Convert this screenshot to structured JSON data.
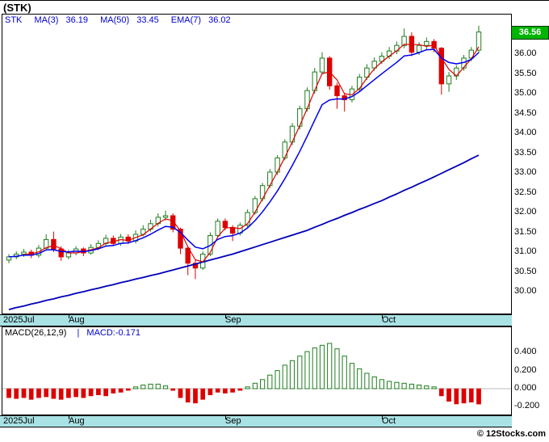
{
  "header": {
    "title": "(STK)"
  },
  "legend": {
    "symbol": "STK",
    "items": [
      {
        "label": "MA(3)",
        "value": "36.19"
      },
      {
        "label": "MA(50)",
        "value": "33.45"
      },
      {
        "label": "EMA(7)",
        "value": "36.02"
      }
    ]
  },
  "price_tag": "36.56",
  "macd": {
    "label": "MACD(26,12,9)",
    "separator": "|",
    "value_label": "MACD:-0.171"
  },
  "footer": {
    "copyright": "© 12Stocks.com"
  },
  "colors": {
    "accent_blue": "#0000CC",
    "up_green": "#1E7D1E",
    "down_red": "#DD0000",
    "ma_fast_blue": "#0000EE",
    "ma_slow_blue": "#0000BB",
    "ma3_red": "#DD0000",
    "band_cyan": "#A9E2E5",
    "tag_green": "#00B400",
    "tag_text": "#FFFFFF"
  },
  "chart_data": [
    {
      "type": "candlestick",
      "title": "(STK)",
      "symbol": "STK",
      "ylim": [
        29.45,
        37.0
      ],
      "y_ticks": [
        "36.00",
        "35.50",
        "35.00",
        "34.50",
        "34.00",
        "33.50",
        "33.00",
        "32.50",
        "32.00",
        "31.50",
        "31.00",
        "30.50",
        "30.00"
      ],
      "x_ticks": [
        {
          "index": 0,
          "label": "2025Jul"
        },
        {
          "index": 8,
          "label": "Aug"
        },
        {
          "index": 29,
          "label": "Sep"
        },
        {
          "index": 50,
          "label": "Oct"
        }
      ],
      "last_price": 36.56,
      "ohlc": {
        "open": [
          30.8,
          30.88,
          30.95,
          31.0,
          30.92,
          31.1,
          31.32,
          31.08,
          30.88,
          30.98,
          31.08,
          30.98,
          31.12,
          31.22,
          31.35,
          31.22,
          31.38,
          31.28,
          31.45,
          31.58,
          31.72,
          31.88,
          31.92,
          31.58,
          31.1,
          30.72,
          30.6,
          30.95,
          31.42,
          31.78,
          31.62,
          31.48,
          31.68,
          32.0,
          32.35,
          32.68,
          33.02,
          33.38,
          33.78,
          34.18,
          34.62,
          35.08,
          35.55,
          35.9,
          35.2,
          34.95,
          34.85,
          35.12,
          35.42,
          35.65,
          35.82,
          35.95,
          36.08,
          36.22,
          36.45,
          36.05,
          36.22,
          36.32,
          36.15,
          35.25,
          35.45,
          35.65,
          35.9,
          36.1
        ],
        "high": [
          30.95,
          31.02,
          31.08,
          31.06,
          31.18,
          31.45,
          31.52,
          31.15,
          31.06,
          31.15,
          31.12,
          31.2,
          31.3,
          31.44,
          31.42,
          31.46,
          31.45,
          31.55,
          31.68,
          31.82,
          31.98,
          32.05,
          31.98,
          31.62,
          31.15,
          30.8,
          31.02,
          31.5,
          31.85,
          31.85,
          31.68,
          31.75,
          32.08,
          32.42,
          32.75,
          33.1,
          33.45,
          33.85,
          34.26,
          34.7,
          35.16,
          35.65,
          36.05,
          35.95,
          35.28,
          35.02,
          35.2,
          35.5,
          35.75,
          35.92,
          36.05,
          36.18,
          36.32,
          36.65,
          36.55,
          36.3,
          36.42,
          36.38,
          36.18,
          35.55,
          35.72,
          35.98,
          36.18,
          36.72
        ],
        "low": [
          30.72,
          30.82,
          30.88,
          30.85,
          30.86,
          31.05,
          31.0,
          30.78,
          30.82,
          30.92,
          30.9,
          30.94,
          31.05,
          31.16,
          31.15,
          31.16,
          31.2,
          31.22,
          31.4,
          31.52,
          31.65,
          31.8,
          31.5,
          30.95,
          30.42,
          30.32,
          30.55,
          30.9,
          31.38,
          31.55,
          31.28,
          31.42,
          31.62,
          31.95,
          32.28,
          32.62,
          32.95,
          33.32,
          33.7,
          34.1,
          34.55,
          35.0,
          35.48,
          35.1,
          34.62,
          34.55,
          34.78,
          35.05,
          35.35,
          35.58,
          35.75,
          35.88,
          36.0,
          36.15,
          35.95,
          35.98,
          36.12,
          36.05,
          34.98,
          35.05,
          35.35,
          35.58,
          35.82,
          36.02
        ],
        "close": [
          30.88,
          30.95,
          31.0,
          30.92,
          31.1,
          31.32,
          31.08,
          30.88,
          30.98,
          31.08,
          30.98,
          31.12,
          31.22,
          31.35,
          31.22,
          31.38,
          31.28,
          31.45,
          31.58,
          31.72,
          31.88,
          31.92,
          31.58,
          31.1,
          30.72,
          30.6,
          30.95,
          31.42,
          31.78,
          31.62,
          31.48,
          31.68,
          32.0,
          32.35,
          32.68,
          33.02,
          33.38,
          33.78,
          34.18,
          34.62,
          35.08,
          35.55,
          35.9,
          35.2,
          34.95,
          34.85,
          35.12,
          35.42,
          35.65,
          35.82,
          35.95,
          36.08,
          36.22,
          36.45,
          36.05,
          36.22,
          36.32,
          36.15,
          35.25,
          35.45,
          35.65,
          35.9,
          36.1,
          36.56
        ]
      },
      "overlays": [
        {
          "name": "MA(3)",
          "type": "sma",
          "period": 3,
          "last_value": 36.19,
          "color": "#DD0000"
        },
        {
          "name": "EMA(7)",
          "type": "ema",
          "period": 7,
          "last_value": 36.02,
          "color": "#0000EE"
        },
        {
          "name": "MA(50)",
          "type": "sma",
          "period": 50,
          "last_value": 33.45,
          "color": "#0000BB",
          "values": [
            29.55,
            29.6,
            29.64,
            29.69,
            29.73,
            29.78,
            29.82,
            29.87,
            29.91,
            29.96,
            30.0,
            30.05,
            30.09,
            30.14,
            30.18,
            30.23,
            30.27,
            30.32,
            30.36,
            30.41,
            30.45,
            30.5,
            30.55,
            30.6,
            30.65,
            30.7,
            30.75,
            30.8,
            30.85,
            30.9,
            30.95,
            31.01,
            31.07,
            31.13,
            31.19,
            31.25,
            31.31,
            31.37,
            31.43,
            31.49,
            31.55,
            31.63,
            31.7,
            31.78,
            31.85,
            31.93,
            32.0,
            32.08,
            32.15,
            32.23,
            32.3,
            32.39,
            32.47,
            32.56,
            32.64,
            32.73,
            32.81,
            32.9,
            32.99,
            33.08,
            33.17,
            33.26,
            33.36,
            33.45
          ]
        }
      ]
    },
    {
      "type": "bar",
      "name": "MACD(26,12,9) histogram",
      "last_value": -0.171,
      "ylim": [
        -0.286,
        0.679
      ],
      "y_ticks": [
        "0.400",
        "0.200",
        "0.000",
        "-0.200"
      ],
      "positive_color": "#1E7D1E",
      "negative_color": "#DD0000",
      "values": [
        -0.1,
        -0.11,
        -0.1,
        -0.12,
        -0.1,
        -0.09,
        -0.11,
        -0.12,
        -0.1,
        -0.09,
        -0.1,
        -0.08,
        -0.07,
        -0.08,
        -0.05,
        -0.04,
        -0.02,
        0.02,
        0.04,
        0.05,
        0.05,
        0.03,
        -0.02,
        -0.1,
        -0.15,
        -0.16,
        -0.12,
        -0.07,
        -0.04,
        -0.05,
        -0.04,
        -0.02,
        0.02,
        0.06,
        0.1,
        0.15,
        0.2,
        0.26,
        0.31,
        0.36,
        0.41,
        0.45,
        0.48,
        0.5,
        0.44,
        0.36,
        0.28,
        0.22,
        0.17,
        0.13,
        0.1,
        0.08,
        0.07,
        0.06,
        0.05,
        0.04,
        0.03,
        0.02,
        -0.08,
        -0.14,
        -0.17,
        -0.16,
        -0.15,
        -0.171
      ]
    }
  ]
}
